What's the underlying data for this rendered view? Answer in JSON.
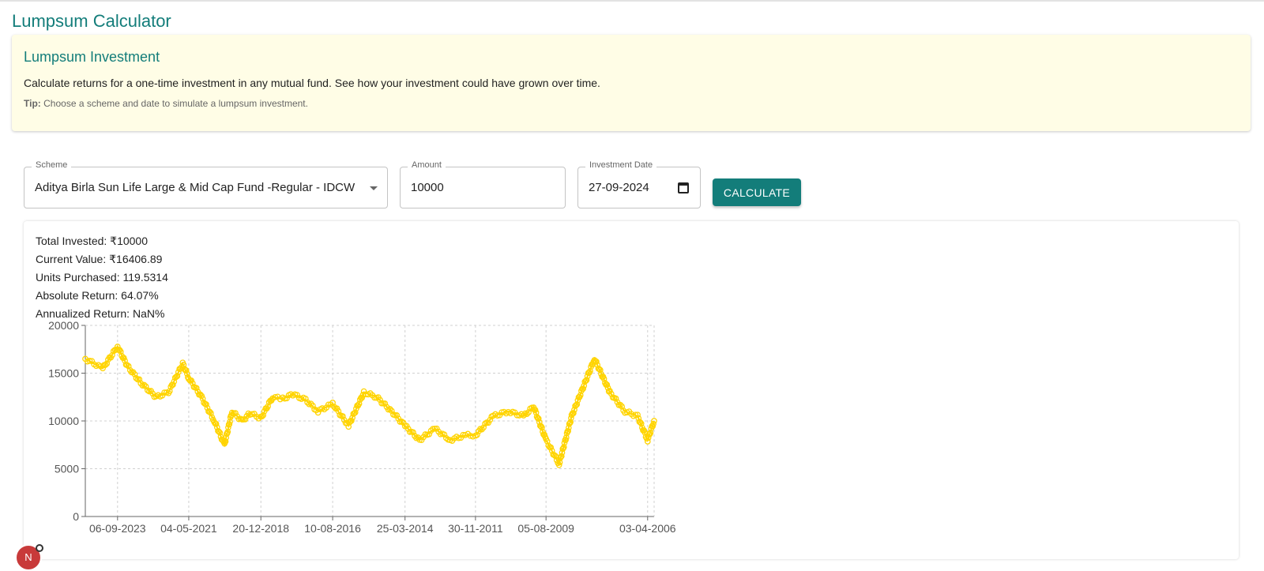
{
  "page_title": "Lumpsum Calculator",
  "info": {
    "title": "Lumpsum Investment",
    "description": "Calculate returns for a one-time investment in any mutual fund. See how your investment could have grown over time.",
    "tip_label": "Tip:",
    "tip_text": "Choose a scheme and date to simulate a lumpsum investment."
  },
  "form": {
    "scheme_label": "Scheme",
    "scheme_value": "Aditya Birla Sun Life Large & Mid Cap Fund -Regular - IDCW",
    "amount_label": "Amount",
    "amount_value": "10000",
    "date_label": "Investment Date",
    "date_value": "27-09-2024",
    "calculate_label": "CALCULATE"
  },
  "results": {
    "total_invested": "Total Invested: ₹10000",
    "current_value": "Current Value: ₹16406.89",
    "units_purchased": "Units Purchased: 119.5314",
    "absolute_return": "Absolute Return: 64.07%",
    "annualized_return": "Annualized Return: NaN%"
  },
  "avatar_letter": "N",
  "colors": {
    "accent": "#137d7a",
    "series": "#ffd400",
    "info_bg": "#fffde6"
  },
  "chart_data": {
    "type": "line",
    "title": "",
    "xlabel": "",
    "ylabel": "",
    "ylim": [
      0,
      20000
    ],
    "yticks": [
      0,
      5000,
      10000,
      15000,
      20000
    ],
    "xticks": [
      "06-09-2023",
      "04-05-2021",
      "20-12-2018",
      "10-08-2016",
      "25-03-2014",
      "30-11-2011",
      "05-08-2009",
      "03-04-2006"
    ],
    "x_order": "newest-to-oldest",
    "grid": true,
    "series": [
      {
        "x": [
          "27-09-2024",
          "01-03-2024",
          "06-09-2023",
          "15-05-2023",
          "01-12-2022",
          "01-06-2022",
          "01-01-2022",
          "15-07-2021",
          "04-05-2021",
          "01-12-2020",
          "01-07-2020",
          "01-03-2020",
          "01-12-2019",
          "01-08-2019",
          "01-05-2019",
          "20-12-2018",
          "01-08-2018",
          "01-04-2018",
          "01-12-2017",
          "01-07-2017",
          "01-02-2017",
          "10-08-2016",
          "01-02-2016",
          "01-08-2015",
          "01-03-2015",
          "01-09-2014",
          "25-03-2014",
          "01-10-2013",
          "01-04-2013",
          "01-10-2012",
          "01-04-2012",
          "30-11-2011",
          "01-05-2011",
          "01-11-2010",
          "01-05-2010",
          "01-01-2010",
          "05-08-2009",
          "01-03-2009",
          "01-10-2008",
          "01-01-2008",
          "01-07-2007",
          "01-01-2007",
          "01-08-2006",
          "03-04-2006",
          "15-01-2006"
        ],
        "values": [
          16500,
          15500,
          17800,
          15800,
          14000,
          12500,
          13000,
          16000,
          14500,
          12500,
          10000,
          7500,
          11000,
          10000,
          10800,
          10300,
          12500,
          12300,
          12800,
          12200,
          11000,
          11800,
          9500,
          13000,
          12500,
          11000,
          9500,
          8000,
          9200,
          8000,
          8500,
          8500,
          10500,
          11000,
          10500,
          11500,
          8000,
          5500,
          10500,
          16500,
          13000,
          11000,
          10500,
          8000,
          10000
        ]
      }
    ]
  }
}
